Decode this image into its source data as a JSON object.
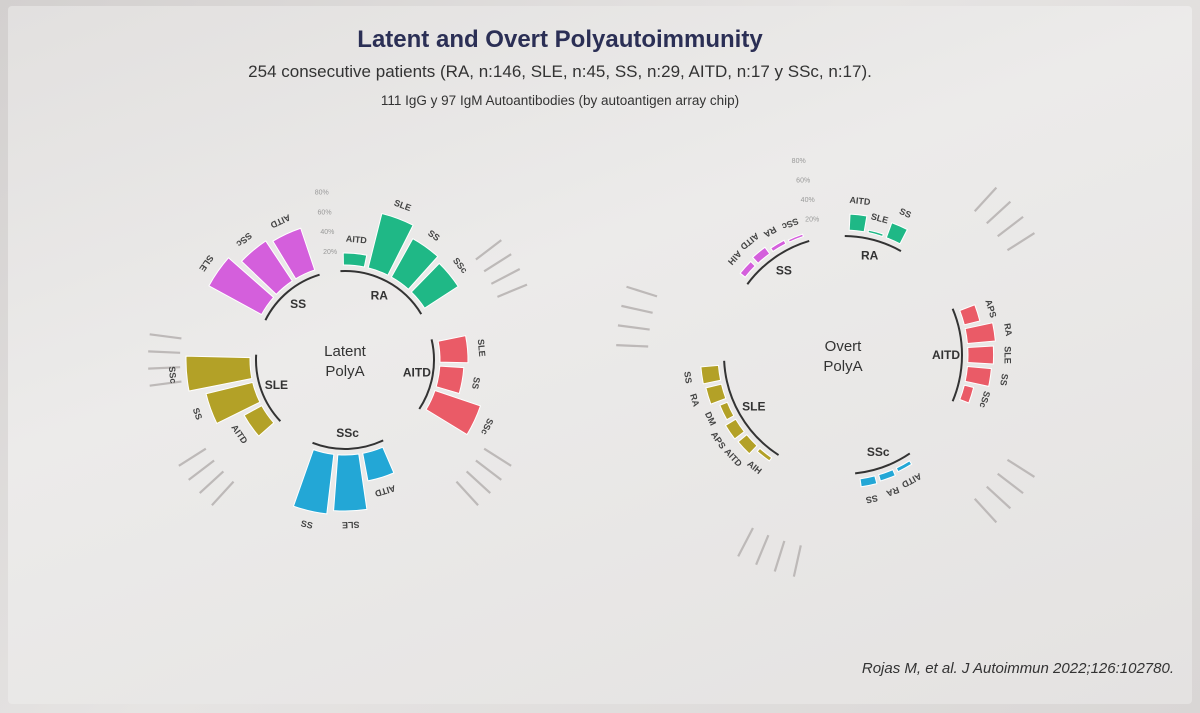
{
  "header": {
    "title": "Latent and Overt Polyautoimmunity",
    "subtitle": "254 consecutive patients (RA, n:146, SLE, n:45, SS, n:29, AITD, n:17 y SSc, n:17).",
    "subtitle2": "111 IgG y 97 IgM Autoantibodies (by autoantigen array chip)"
  },
  "citation": "Rojas M, et al. J Autoimmun 2022;126:102780.",
  "colors": {
    "SS": "#d45fdc",
    "RA": "#1fb886",
    "AITD": "#ea5b67",
    "SSc": "#23a7d6",
    "SLE": "#b3a127"
  },
  "chart_data": [
    {
      "type": "bar",
      "subtype": "circular-barplot",
      "center_label_line1": "Latent",
      "center_label_line2": "PolyA",
      "tick_labels": [
        "80%",
        "60%",
        "40%",
        "20%"
      ],
      "groups": [
        {
          "name": "SS",
          "color_key": "SS",
          "categories": [
            "SLE",
            "SSc",
            "AITD"
          ],
          "values": [
            75,
            60,
            55
          ]
        },
        {
          "name": "RA",
          "color_key": "RA",
          "categories": [
            "AITD",
            "SLE",
            "SS",
            "SSc"
          ],
          "values": [
            15,
            70,
            55,
            50
          ]
        },
        {
          "name": "AITD",
          "color_key": "AITD",
          "categories": [
            "SLE",
            "SS",
            "SSc"
          ],
          "values": [
            35,
            30,
            60
          ]
        },
        {
          "name": "SSc",
          "color_key": "SSc",
          "categories": [
            "AITD",
            "SLE",
            "SS"
          ],
          "values": [
            35,
            70,
            75
          ]
        },
        {
          "name": "SLE",
          "color_key": "SLE",
          "categories": [
            "AITD",
            "SS",
            "SSc"
          ],
          "values": [
            25,
            60,
            80
          ]
        }
      ]
    },
    {
      "type": "bar",
      "subtype": "circular-barplot",
      "center_label_line1": "Overt",
      "center_label_line2": "PolyA",
      "tick_labels": [
        "80%",
        "60%",
        "40%",
        "20%"
      ],
      "groups": [
        {
          "name": "SS",
          "color_key": "SS",
          "categories": [
            "AIH",
            "AITD",
            "RA",
            "SSc"
          ],
          "values": [
            8,
            10,
            5,
            3
          ]
        },
        {
          "name": "RA",
          "color_key": "RA",
          "categories": [
            "AITD",
            "SLE",
            "SS"
          ],
          "values": [
            20,
            3,
            20
          ]
        },
        {
          "name": "AITD",
          "color_key": "AITD",
          "categories": [
            "APS",
            "RA",
            "SLE",
            "SS",
            "SSc"
          ],
          "values": [
            20,
            35,
            32,
            30,
            12
          ]
        },
        {
          "name": "SSc",
          "color_key": "SSc",
          "categories": [
            "AITD",
            "RA",
            "SS"
          ],
          "values": [
            5,
            8,
            10
          ]
        },
        {
          "name": "SLE",
          "color_key": "SLE",
          "categories": [
            "AIH",
            "AITD",
            "APS",
            "DM",
            "RA",
            "SS"
          ],
          "values": [
            5,
            14,
            15,
            10,
            20,
            22
          ]
        }
      ]
    }
  ]
}
